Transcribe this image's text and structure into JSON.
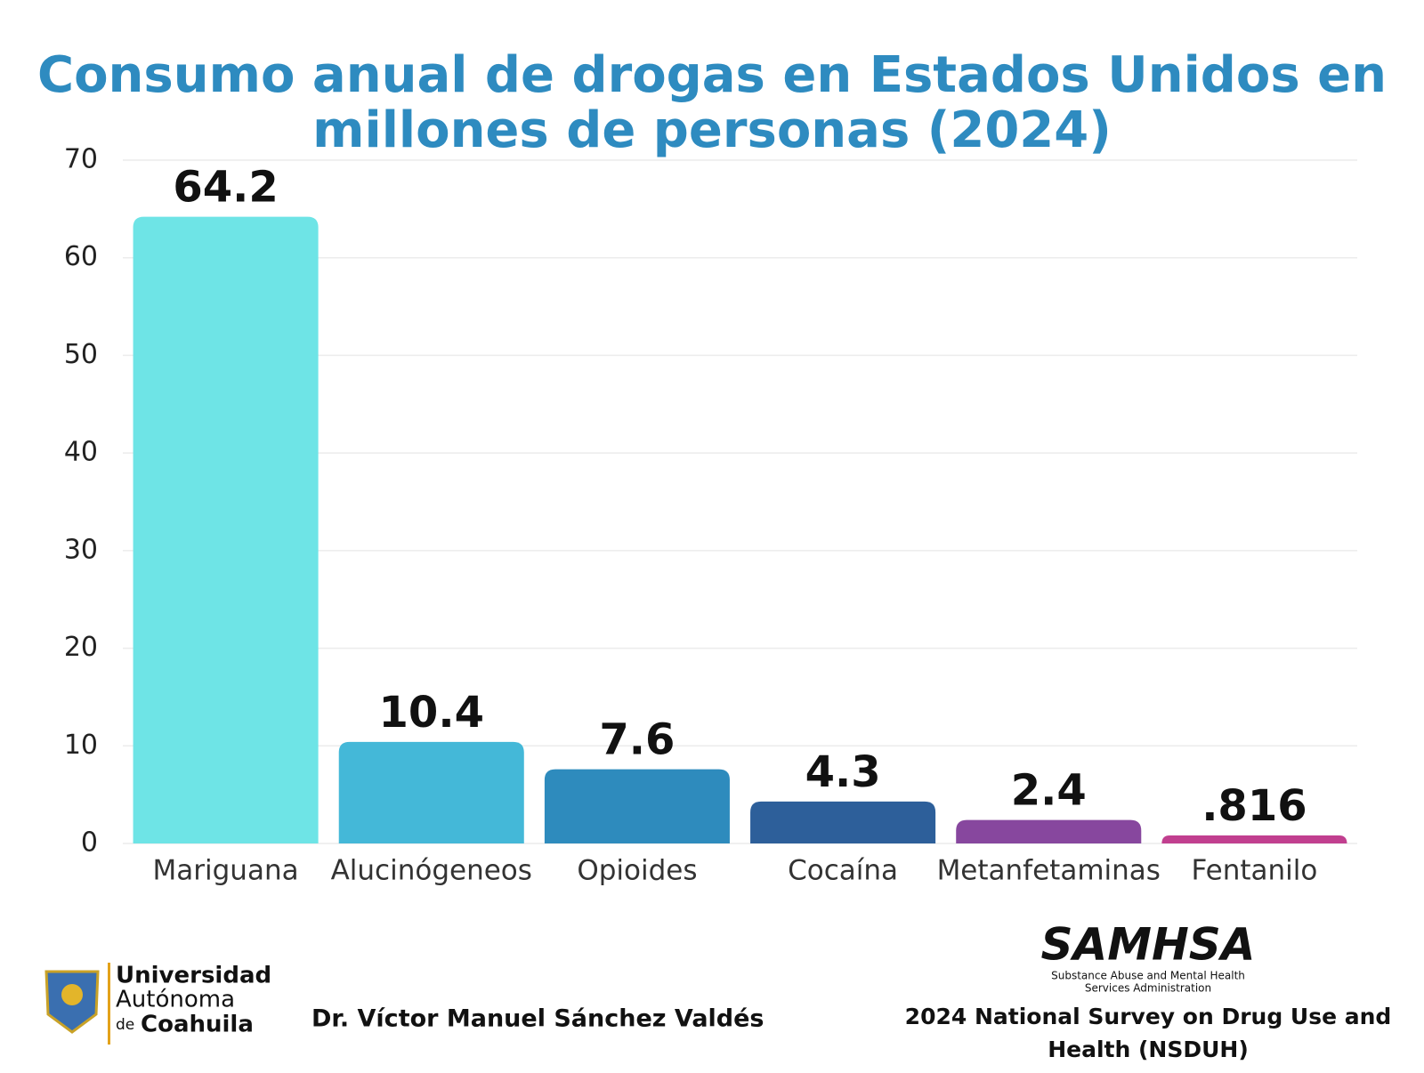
{
  "chart_data": {
    "type": "bar",
    "title": [
      "Consumo anual de drogas en Estados Unidos en",
      "millones de personas (2024)"
    ],
    "categories": [
      "Mariguana",
      "Alucinógeneos",
      "Opioides",
      "Cocaína",
      "Metanfetaminas",
      "Fentanilo"
    ],
    "values": [
      64.2,
      10.4,
      7.6,
      4.3,
      2.4,
      0.816
    ],
    "value_labels": [
      "64.2",
      "10.4",
      "7.6",
      "4.3",
      "2.4",
      ".816"
    ],
    "colors": [
      "#6ee4e6",
      "#44b8d8",
      "#2e8bbd",
      "#2d5f9a",
      "#87479e",
      "#c13f8f"
    ],
    "ylim": [
      0,
      70
    ],
    "yticks": [
      0,
      10,
      20,
      30,
      40,
      50,
      60,
      70
    ],
    "grid": true
  },
  "footer": {
    "university": [
      "Universidad",
      "Autónoma",
      "de",
      "Coahuila"
    ],
    "author": "Dr. Víctor Manuel Sánchez Valdés",
    "agency": "SAMHSA",
    "agency_name": [
      "Substance Abuse and Mental Health",
      "Services Administration"
    ],
    "source": [
      "2024 National Survey on Drug Use and",
      "Health (NSDUH)"
    ]
  }
}
